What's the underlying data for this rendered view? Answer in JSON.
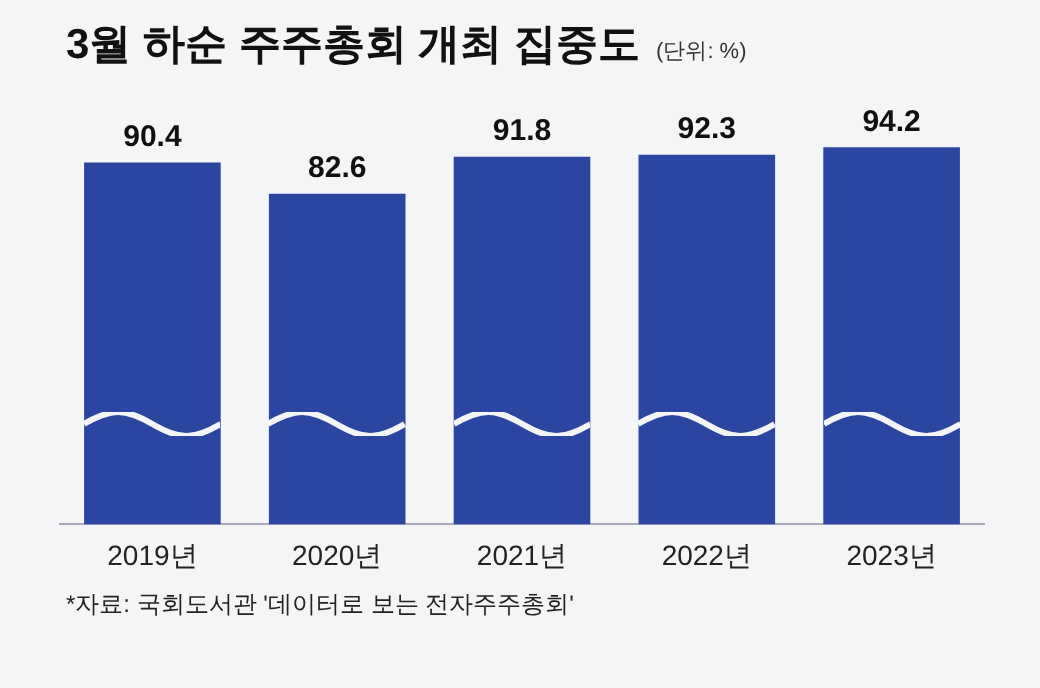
{
  "chart_data": {
    "type": "bar",
    "title": "3월 하순 주주총회 개최 집중도",
    "subtitle": "(단위: %)",
    "categories": [
      "2019년",
      "2020년",
      "2021년",
      "2022년",
      "2023년"
    ],
    "values": [
      90.4,
      82.6,
      91.8,
      92.3,
      94.2
    ],
    "color": "#2b46a0",
    "data_labels": true,
    "grid": false,
    "legend": false,
    "annotations": [
      "*자료: 국회도서관 '데이터로 보는 전자주주총회'"
    ]
  }
}
